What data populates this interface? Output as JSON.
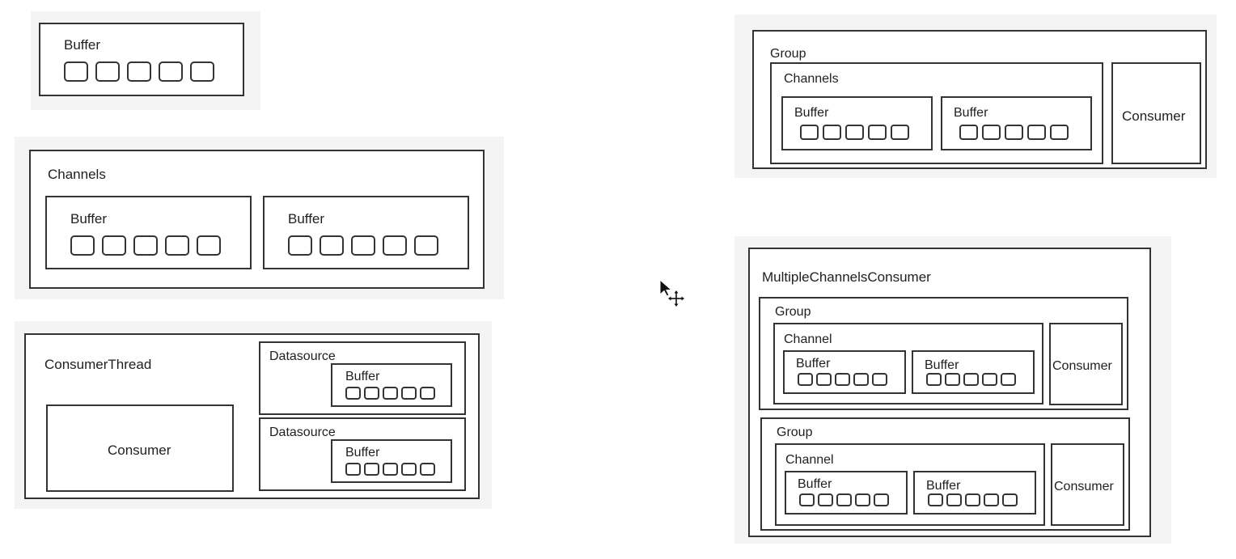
{
  "labels": {
    "buffer": "Buffer",
    "channels": "Channels",
    "channel": "Channel",
    "consumer_thread": "ConsumerThread",
    "consumer": "Consumer",
    "datasource": "Datasource",
    "group": "Group",
    "multiple_channels_consumer": "MultipleChannelsConsumer"
  },
  "icons": {
    "cursor": "move-cursor-icon"
  },
  "colors": {
    "stroke": "#333333",
    "panel_background": "#f4f4f4",
    "box_fill": "#ffffff"
  }
}
